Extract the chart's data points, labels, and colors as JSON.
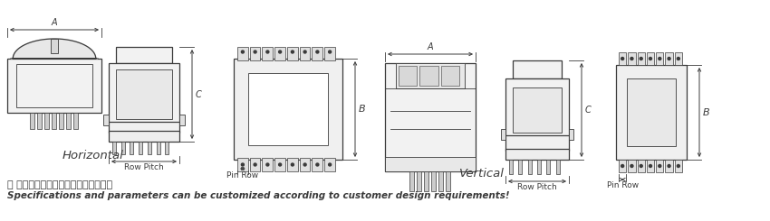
{
  "bg_color": "#ffffff",
  "line_color": "#3a3a3a",
  "text_color": "#111111",
  "title_horizontal": "Horizontal",
  "title_vertical": "Vertical",
  "label_A": "A",
  "label_B": "B",
  "label_C": "C",
  "label_row_pitch": "Row Pitch",
  "label_pin_row": "Pin Row",
  "note_chinese": "＊ 可根据客户设计需求定制规格和参数",
  "note_english": "Specifications and parameters can be customized according to customer design requirements!"
}
